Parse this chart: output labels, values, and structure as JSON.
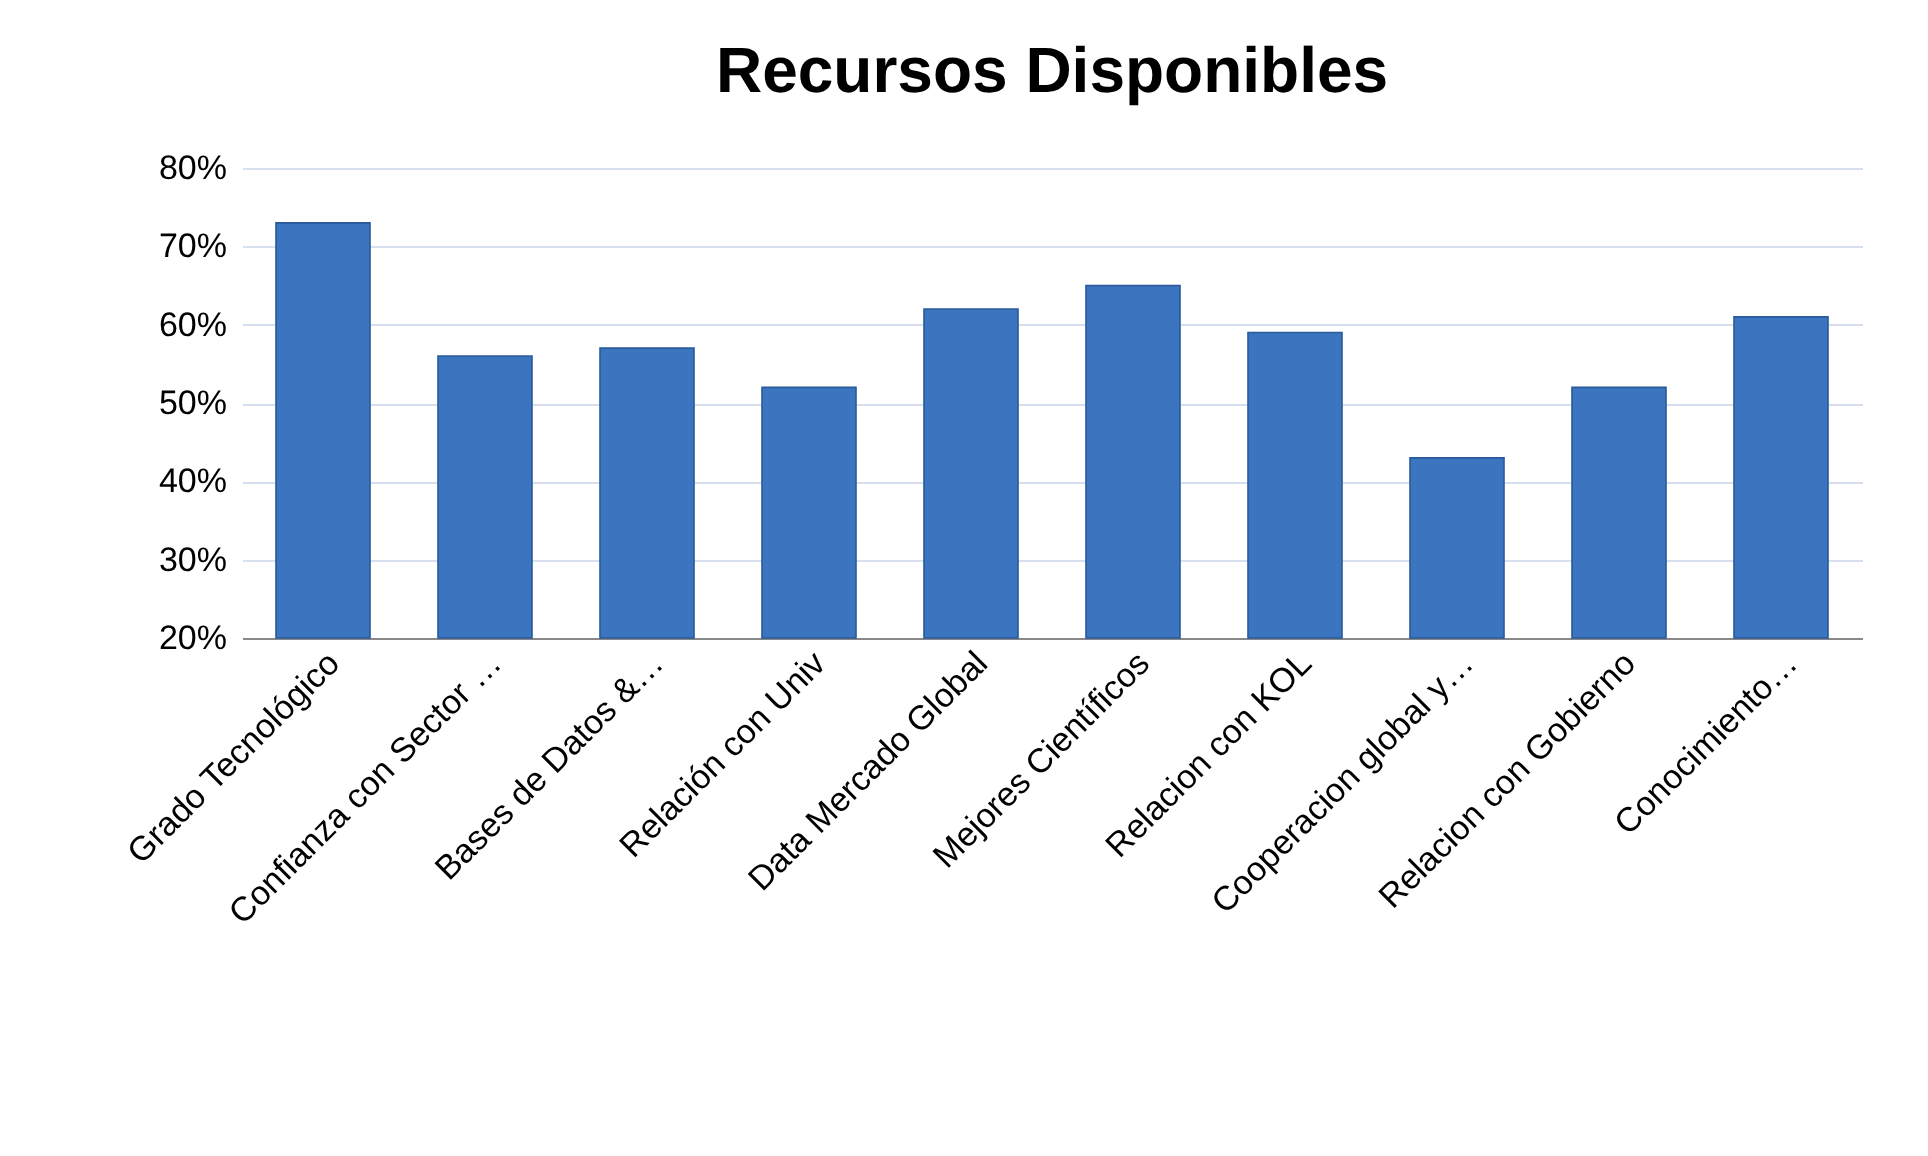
{
  "chart_data": {
    "type": "bar",
    "title": "Recursos Disponibles",
    "categories": [
      "Grado Tecnológico",
      "Confianza con Sector …",
      "Bases de Datos &…",
      "Relación con Univ",
      "Data Mercado Global",
      "Mejores Científicos",
      "Relacion con KOL",
      "Cooperacion global y…",
      "Relacion con Gobierno",
      "Conocimiento…"
    ],
    "values": [
      73,
      56,
      57,
      52,
      62,
      65,
      59,
      43,
      52,
      61
    ],
    "color": "#3b74bf",
    "ylim": [
      20,
      80
    ],
    "yticks": [
      {
        "value": 20,
        "label": "20%"
      },
      {
        "value": 30,
        "label": "30%"
      },
      {
        "value": 40,
        "label": "40%"
      },
      {
        "value": 50,
        "label": "50%"
      },
      {
        "value": 60,
        "label": "60%"
      },
      {
        "value": 70,
        "label": "70%"
      },
      {
        "value": 80,
        "label": "80%"
      }
    ],
    "grid": "y"
  }
}
